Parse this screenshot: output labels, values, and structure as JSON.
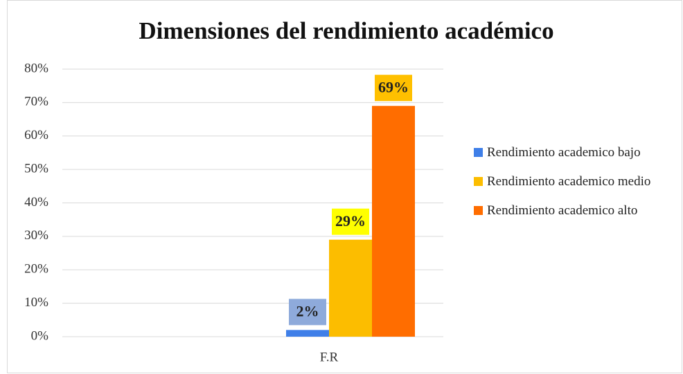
{
  "chart_data": {
    "type": "bar",
    "title": "Dimensiones del rendimiento académico",
    "categories": [
      "F.R"
    ],
    "series": [
      {
        "name": "Rendimiento academico bajo",
        "color": "#3f7fe8",
        "label_background": "#8eaadb",
        "values": [
          2
        ],
        "value_labels": [
          "2%"
        ]
      },
      {
        "name": "Rendimiento academico medio",
        "color": "#fcbd00",
        "label_background": "#ffff00",
        "values": [
          29
        ],
        "value_labels": [
          "29%"
        ]
      },
      {
        "name": "Rendimiento academico alto",
        "color": "#ff6d00",
        "label_background": "#ffc000",
        "values": [
          69
        ],
        "value_labels": [
          "69%"
        ]
      }
    ],
    "ylim": [
      0,
      80
    ],
    "yticks": [
      {
        "value": 0,
        "label": "0%"
      },
      {
        "value": 10,
        "label": "10%"
      },
      {
        "value": 20,
        "label": "20%"
      },
      {
        "value": 30,
        "label": "30%"
      },
      {
        "value": 40,
        "label": "40%"
      },
      {
        "value": 50,
        "label": "50%"
      },
      {
        "value": 60,
        "label": "60%"
      },
      {
        "value": 70,
        "label": "70%"
      },
      {
        "value": 80,
        "label": "80%"
      }
    ],
    "grid": true,
    "legend": "right"
  }
}
